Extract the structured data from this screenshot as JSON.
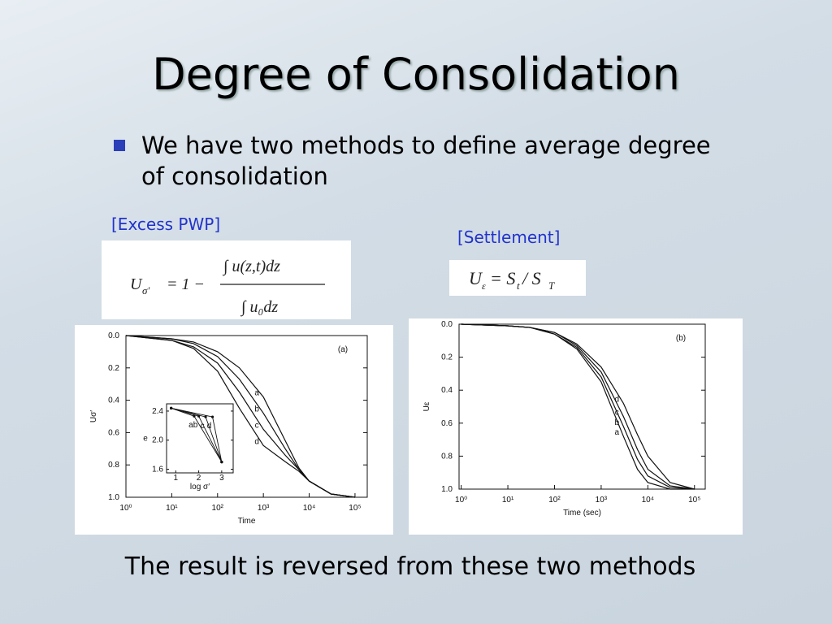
{
  "title": "Degree of Consolidation",
  "bullet": "We have two methods to define average degree of consolidation",
  "labels": {
    "excess_pwp": "[Excess PWP]",
    "settlement": "[Settlement]"
  },
  "formula_pwp": {
    "lhs": "U",
    "lhs_sub": "σ′",
    "eq": "= 1 −",
    "num": "∫ u(z,t)dz",
    "den": "∫ u₀dz"
  },
  "formula_settlement": {
    "lhs": "U",
    "lhs_sub": "ε",
    "rhs": "= S",
    "rhs_sub": "t",
    "div": "/ S",
    "div_sub": "T"
  },
  "figures": [
    {
      "type": "line",
      "panel_label": "(a)",
      "xlabel": "Time",
      "ylabel": "Uσ′",
      "log_x": true,
      "y_inverted": true,
      "x": [
        1,
        10,
        30,
        100,
        300,
        1000,
        3000,
        6000,
        10000,
        30000,
        100000
      ],
      "series": [
        {
          "name": "a",
          "color": "#111111",
          "values": [
            0,
            0.02,
            0.04,
            0.1,
            0.2,
            0.38,
            0.65,
            0.82,
            0.9,
            0.98,
            1.0
          ]
        },
        {
          "name": "b",
          "color": "#111111",
          "values": [
            0,
            0.02,
            0.05,
            0.13,
            0.27,
            0.48,
            0.7,
            0.83,
            0.9,
            0.98,
            1.0
          ]
        },
        {
          "name": "c",
          "color": "#111111",
          "values": [
            0,
            0.03,
            0.07,
            0.17,
            0.35,
            0.58,
            0.74,
            0.83,
            0.9,
            0.98,
            1.0
          ]
        },
        {
          "name": "d",
          "color": "#111111",
          "values": [
            0,
            0.03,
            0.08,
            0.22,
            0.45,
            0.68,
            0.78,
            0.84,
            0.9,
            0.98,
            1.0
          ]
        }
      ],
      "xlim": [
        1,
        185000
      ],
      "xticks": [
        {
          "value": 1,
          "label": "10⁰"
        },
        {
          "value": 10,
          "label": "10¹"
        },
        {
          "value": 100,
          "label": "10²"
        },
        {
          "value": 1000,
          "label": "10³"
        },
        {
          "value": 10000,
          "label": "10⁴"
        },
        {
          "value": 100000,
          "label": "10⁵"
        }
      ],
      "ylim": [
        0,
        1
      ],
      "yticks": [
        {
          "value": 0,
          "label": "0.0"
        },
        0.2,
        0.4,
        0.6,
        0.8,
        {
          "value": 1,
          "label": "1.0"
        }
      ],
      "inset": {
        "type": "line",
        "xlabel": "log σ′",
        "ylabel": "e",
        "series": [
          {
            "name": "a",
            "x": [
              0.8,
              1.8,
              3.0
            ],
            "values": [
              2.44,
              2.33,
              1.7
            ]
          },
          {
            "name": "b",
            "x": [
              0.8,
              2.0,
              3.0
            ],
            "values": [
              2.44,
              2.33,
              1.7
            ]
          },
          {
            "name": "c",
            "x": [
              0.8,
              2.3,
              3.0
            ],
            "values": [
              2.44,
              2.32,
              1.7
            ]
          },
          {
            "name": "d",
            "x": [
              0.8,
              2.6,
              3.0
            ],
            "values": [
              2.44,
              2.32,
              1.7
            ]
          }
        ],
        "xlim": [
          0.6,
          3.5
        ],
        "xticks": [
          1,
          2,
          3
        ],
        "ylim": [
          1.55,
          2.5
        ],
        "yticks": [
          1.6,
          {
            "value": 2,
            "label": "2.0"
          },
          2.4
        ]
      }
    },
    {
      "type": "line",
      "panel_label": "(b)",
      "xlabel": "Time (sec)",
      "ylabel": "Uε",
      "log_x": true,
      "y_inverted": true,
      "x": [
        1,
        10,
        30,
        100,
        300,
        1000,
        3000,
        6000,
        10000,
        30000,
        100000
      ],
      "series": [
        {
          "name": "a",
          "color": "#111111",
          "values": [
            0,
            0.01,
            0.02,
            0.06,
            0.15,
            0.35,
            0.68,
            0.88,
            0.96,
            1.0,
            1.0
          ]
        },
        {
          "name": "b",
          "color": "#111111",
          "values": [
            0,
            0.01,
            0.02,
            0.06,
            0.14,
            0.32,
            0.62,
            0.82,
            0.92,
            0.99,
            1.0
          ]
        },
        {
          "name": "c",
          "color": "#111111",
          "values": [
            0,
            0.01,
            0.02,
            0.05,
            0.13,
            0.29,
            0.56,
            0.76,
            0.88,
            0.98,
            1.0
          ]
        },
        {
          "name": "d",
          "color": "#111111",
          "values": [
            0,
            0.01,
            0.02,
            0.05,
            0.12,
            0.26,
            0.48,
            0.67,
            0.8,
            0.96,
            1.0
          ]
        }
      ],
      "xlim": [
        0.9,
        170000
      ],
      "xticks": [
        {
          "value": 1,
          "label": "10⁰"
        },
        {
          "value": 10,
          "label": "10¹"
        },
        {
          "value": 100,
          "label": "10²"
        },
        {
          "value": 1000,
          "label": "10³"
        },
        {
          "value": 10000,
          "label": "10⁴"
        },
        {
          "value": 100000,
          "label": "10⁵"
        }
      ],
      "ylim": [
        0,
        1
      ],
      "yticks": [
        {
          "value": 0,
          "label": "0.0"
        },
        0.2,
        0.4,
        0.6,
        0.8,
        {
          "value": 1,
          "label": "1.0"
        }
      ]
    }
  ],
  "caption": "The result is reversed from these two methods"
}
